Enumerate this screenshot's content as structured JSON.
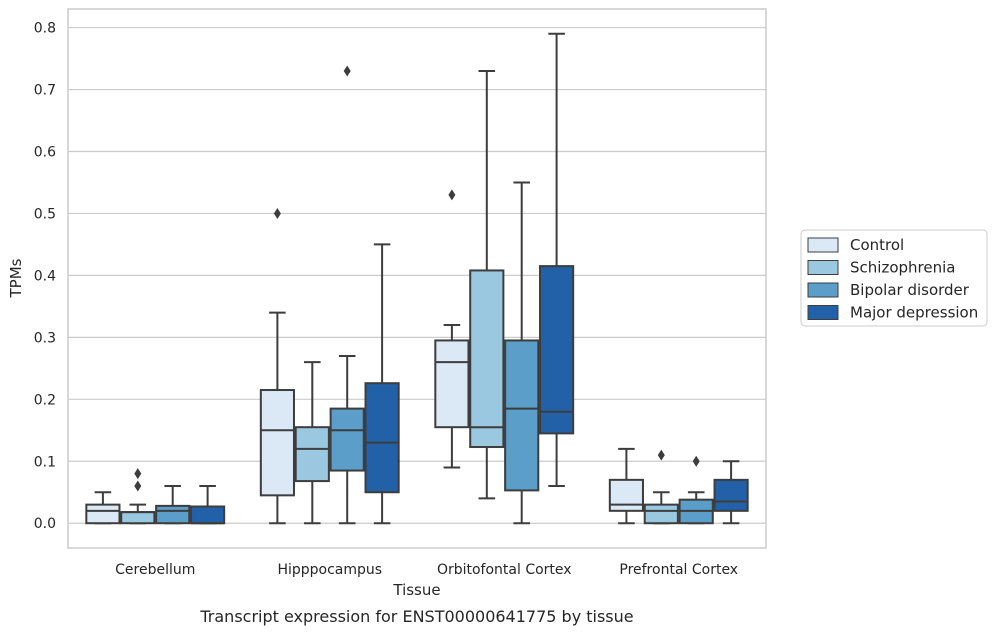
{
  "caption": "Transcript expression for ENST00000641775 by tissue",
  "chart_data": {
    "type": "box",
    "xlabel": "Tissue",
    "ylabel": "TPMs",
    "ylim": [
      -0.04,
      0.83
    ],
    "yticks": [
      "0.0",
      "0.1",
      "0.2",
      "0.3",
      "0.4",
      "0.5",
      "0.6",
      "0.7",
      "0.8"
    ],
    "grid": "horizontal",
    "legend_position": "right",
    "categories": [
      "Cerebellum",
      "Hipppocampus",
      "Orbitofontal Cortex",
      "Prefrontal Cortex"
    ],
    "series": [
      {
        "name": "Control",
        "color": "#dbe9f6",
        "boxes": [
          {
            "whislo": 0.0,
            "q1": 0.0,
            "med": 0.02,
            "q3": 0.03,
            "whishi": 0.05,
            "fliers": []
          },
          {
            "whislo": 0.0,
            "q1": 0.045,
            "med": 0.15,
            "q3": 0.215,
            "whishi": 0.34,
            "fliers": [
              0.5
            ]
          },
          {
            "whislo": 0.09,
            "q1": 0.155,
            "med": 0.26,
            "q3": 0.295,
            "whishi": 0.32,
            "fliers": [
              0.53
            ]
          },
          {
            "whislo": 0.0,
            "q1": 0.02,
            "med": 0.03,
            "q3": 0.07,
            "whishi": 0.12,
            "fliers": []
          }
        ]
      },
      {
        "name": "Schizophrenia",
        "color": "#9ac8e0",
        "boxes": [
          {
            "whislo": 0.0,
            "q1": 0.0,
            "med": 0.018,
            "q3": 0.018,
            "whishi": 0.03,
            "fliers": [
              0.06,
              0.08
            ]
          },
          {
            "whislo": 0.0,
            "q1": 0.068,
            "med": 0.12,
            "q3": 0.155,
            "whishi": 0.26,
            "fliers": []
          },
          {
            "whislo": 0.04,
            "q1": 0.123,
            "med": 0.155,
            "q3": 0.408,
            "whishi": 0.73,
            "fliers": []
          },
          {
            "whislo": 0.0,
            "q1": 0.0,
            "med": 0.02,
            "q3": 0.03,
            "whishi": 0.05,
            "fliers": [
              0.11
            ]
          }
        ]
      },
      {
        "name": "Bipolar disorder",
        "color": "#5a9ec9",
        "boxes": [
          {
            "whislo": 0.0,
            "q1": 0.0,
            "med": 0.02,
            "q3": 0.028,
            "whishi": 0.06,
            "fliers": []
          },
          {
            "whislo": 0.0,
            "q1": 0.085,
            "med": 0.15,
            "q3": 0.185,
            "whishi": 0.27,
            "fliers": [
              0.73
            ]
          },
          {
            "whislo": 0.0,
            "q1": 0.053,
            "med": 0.185,
            "q3": 0.295,
            "whishi": 0.55,
            "fliers": []
          },
          {
            "whislo": 0.0,
            "q1": 0.0,
            "med": 0.02,
            "q3": 0.038,
            "whishi": 0.05,
            "fliers": [
              0.1
            ]
          }
        ]
      },
      {
        "name": "Major depression",
        "color": "#2261a8",
        "boxes": [
          {
            "whislo": 0.0,
            "q1": 0.0,
            "med": 0.0,
            "q3": 0.027,
            "whishi": 0.06,
            "fliers": []
          },
          {
            "whislo": 0.0,
            "q1": 0.05,
            "med": 0.13,
            "q3": 0.226,
            "whishi": 0.45,
            "fliers": []
          },
          {
            "whislo": 0.06,
            "q1": 0.145,
            "med": 0.18,
            "q3": 0.415,
            "whishi": 0.79,
            "fliers": []
          },
          {
            "whislo": 0.0,
            "q1": 0.02,
            "med": 0.035,
            "q3": 0.07,
            "whishi": 0.1,
            "fliers": []
          }
        ]
      }
    ]
  }
}
